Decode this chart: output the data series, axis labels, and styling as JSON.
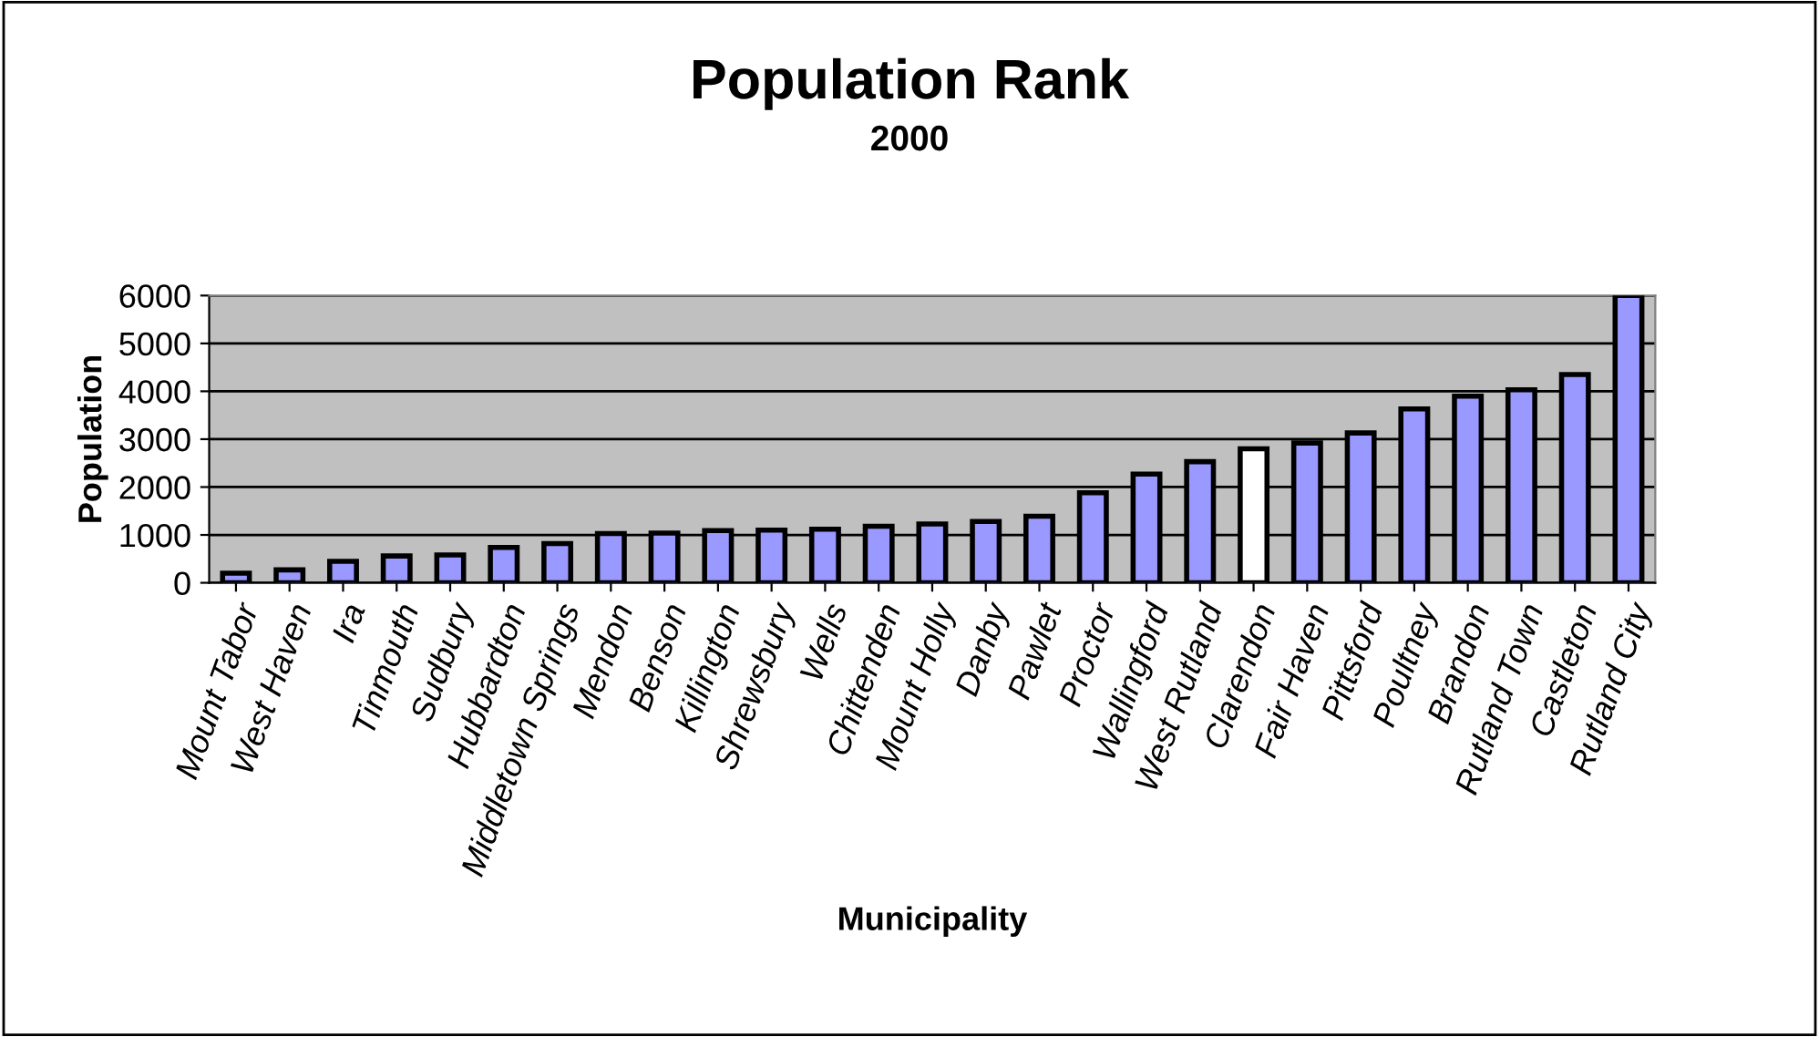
{
  "chart_data": {
    "type": "bar",
    "title": "Population Rank",
    "subtitle": "2000",
    "xlabel": "Municipality",
    "ylabel": "Population",
    "categories": [
      "Mount Tabor",
      "West Haven",
      "Ira",
      "Tinmouth",
      "Sudbury",
      "Hubbardton",
      "Middletown Springs",
      "Mendon",
      "Benson",
      "Killington",
      "Shrewsbury",
      "Wells",
      "Chittenden",
      "Mount Holly",
      "Danby",
      "Pawlet",
      "Proctor",
      "Wallingford",
      "West Rutland",
      "Clarendon",
      "Fair Haven",
      "Pittsford",
      "Poultney",
      "Brandon",
      "Rutland Town",
      "Castleton",
      "Rutland City"
    ],
    "values": [
      200,
      270,
      450,
      560,
      580,
      740,
      820,
      1030,
      1040,
      1090,
      1100,
      1120,
      1180,
      1230,
      1280,
      1390,
      1880,
      2270,
      2530,
      2800,
      2920,
      3130,
      3630,
      3900,
      4030,
      4350,
      6000
    ],
    "colors": [
      "#9999ff",
      "#9999ff",
      "#9999ff",
      "#9999ff",
      "#9999ff",
      "#9999ff",
      "#9999ff",
      "#9999ff",
      "#9999ff",
      "#9999ff",
      "#9999ff",
      "#9999ff",
      "#9999ff",
      "#9999ff",
      "#9999ff",
      "#9999ff",
      "#9999ff",
      "#9999ff",
      "#9999ff",
      "#ffffff",
      "#9999ff",
      "#9999ff",
      "#9999ff",
      "#9999ff",
      "#9999ff",
      "#9999ff",
      "#9999ff"
    ],
    "ylim": [
      0,
      6000
    ],
    "yticks": [
      0,
      1000,
      2000,
      3000,
      4000,
      5000,
      6000
    ],
    "grid": "y",
    "legend": false
  }
}
